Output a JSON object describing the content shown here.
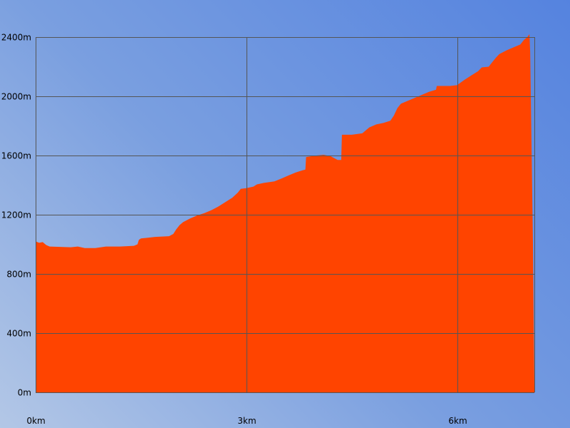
{
  "chart_data": {
    "type": "area",
    "title": "",
    "xlabel": "",
    "ylabel": "",
    "x_unit": "km",
    "y_unit": "m",
    "xlim": [
      0,
      7.1
    ],
    "ylim": [
      0,
      2400
    ],
    "x_ticks": [
      {
        "value": 0,
        "label": "0km"
      },
      {
        "value": 3,
        "label": "3km"
      },
      {
        "value": 6,
        "label": "6km"
      }
    ],
    "y_ticks": [
      {
        "value": 0,
        "label": "0m"
      },
      {
        "value": 400,
        "label": "400m"
      },
      {
        "value": 800,
        "label": "800m"
      },
      {
        "value": 1200,
        "label": "1200m"
      },
      {
        "value": 1600,
        "label": "1600m"
      },
      {
        "value": 2000,
        "label": "2000m"
      },
      {
        "value": 2400,
        "label": "2400m"
      }
    ],
    "grid": true,
    "fill_color": "#ff4400",
    "grid_color": "#555555",
    "series": [
      {
        "name": "",
        "points": [
          [
            0.0,
            1020
          ],
          [
            0.05,
            1010
          ],
          [
            0.1,
            1015
          ],
          [
            0.15,
            995
          ],
          [
            0.2,
            985
          ],
          [
            0.5,
            980
          ],
          [
            0.6,
            985
          ],
          [
            0.7,
            975
          ],
          [
            0.85,
            975
          ],
          [
            1.0,
            985
          ],
          [
            1.2,
            985
          ],
          [
            1.4,
            990
          ],
          [
            1.45,
            1000
          ],
          [
            1.47,
            1030
          ],
          [
            1.5,
            1040
          ],
          [
            1.6,
            1045
          ],
          [
            1.7,
            1050
          ],
          [
            1.9,
            1055
          ],
          [
            1.96,
            1070
          ],
          [
            2.0,
            1100
          ],
          [
            2.05,
            1130
          ],
          [
            2.1,
            1150
          ],
          [
            2.2,
            1175
          ],
          [
            2.3,
            1195
          ],
          [
            2.4,
            1210
          ],
          [
            2.5,
            1230
          ],
          [
            2.6,
            1255
          ],
          [
            2.7,
            1285
          ],
          [
            2.8,
            1315
          ],
          [
            2.88,
            1350
          ],
          [
            2.92,
            1375
          ],
          [
            3.0,
            1380
          ],
          [
            3.1,
            1390
          ],
          [
            3.15,
            1405
          ],
          [
            3.25,
            1415
          ],
          [
            3.4,
            1425
          ],
          [
            3.5,
            1445
          ],
          [
            3.6,
            1465
          ],
          [
            3.7,
            1485
          ],
          [
            3.8,
            1500
          ],
          [
            3.84,
            1505
          ],
          [
            3.85,
            1590
          ],
          [
            4.0,
            1600
          ],
          [
            4.1,
            1605
          ],
          [
            4.2,
            1595
          ],
          [
            4.3,
            1570
          ],
          [
            4.35,
            1570
          ],
          [
            4.36,
            1740
          ],
          [
            4.5,
            1740
          ],
          [
            4.65,
            1750
          ],
          [
            4.75,
            1790
          ],
          [
            4.85,
            1810
          ],
          [
            4.95,
            1820
          ],
          [
            5.05,
            1835
          ],
          [
            5.1,
            1870
          ],
          [
            5.15,
            1920
          ],
          [
            5.2,
            1950
          ],
          [
            5.3,
            1970
          ],
          [
            5.4,
            1990
          ],
          [
            5.5,
            2010
          ],
          [
            5.6,
            2030
          ],
          [
            5.7,
            2045
          ],
          [
            5.71,
            2070
          ],
          [
            5.9,
            2070
          ],
          [
            6.0,
            2075
          ],
          [
            6.1,
            2110
          ],
          [
            6.2,
            2140
          ],
          [
            6.3,
            2170
          ],
          [
            6.35,
            2195
          ],
          [
            6.45,
            2200
          ],
          [
            6.5,
            2230
          ],
          [
            6.55,
            2260
          ],
          [
            6.6,
            2285
          ],
          [
            6.7,
            2310
          ],
          [
            6.8,
            2330
          ],
          [
            6.9,
            2350
          ],
          [
            6.95,
            2380
          ],
          [
            7.0,
            2400
          ],
          [
            7.03,
            2420
          ],
          [
            7.04,
            2300
          ],
          [
            7.08,
            1000
          ],
          [
            7.1,
            0
          ]
        ]
      }
    ]
  }
}
